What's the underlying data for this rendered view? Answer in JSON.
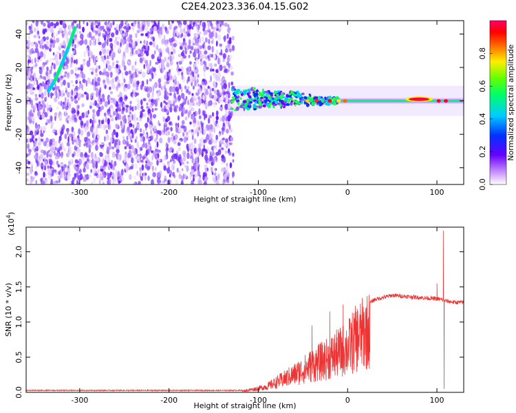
{
  "title": "C2E4.2023.336.04.15.G02",
  "chart_data": [
    {
      "type": "heatmap",
      "xlabel": "Height of straight line (km)",
      "ylabel": "Frequency (Hz)",
      "xlim": [
        -360,
        130
      ],
      "ylim": [
        -50,
        48
      ],
      "xticks": [
        -300,
        -200,
        -100,
        0,
        100
      ],
      "yticks": [
        -40,
        -20,
        0,
        20,
        40
      ],
      "colorbar": {
        "label": "Normalized spectral amplitude",
        "range": [
          0,
          1
        ],
        "ticks": [
          "0.0",
          "0.2",
          "0.4",
          "0.6",
          "0.8"
        ],
        "tick_values": [
          0,
          0.2,
          0.4,
          0.6,
          0.8
        ],
        "colors": [
          "#ffffff",
          "#cc99ff",
          "#6600ff",
          "#0033ff",
          "#00ccff",
          "#00ff66",
          "#66ff00",
          "#ffee00",
          "#ff6600",
          "#ff0000",
          "#ff0066"
        ]
      },
      "features": [
        {
          "name": "noise-region",
          "x_range": [
            -360,
            -128
          ],
          "f_range": [
            -50,
            48
          ]
        },
        {
          "name": "chirp-trace",
          "points": [
            [
              -335,
              6
            ],
            [
              -328,
              12
            ],
            [
              -320,
              22
            ],
            [
              -312,
              33
            ],
            [
              -305,
              44
            ]
          ]
        },
        {
          "name": "central-band",
          "x_range": [
            -130,
            130
          ],
          "center_hz": 0
        },
        {
          "name": "hot-spot",
          "x": 80,
          "f": 1
        }
      ]
    },
    {
      "type": "line",
      "xlabel": "Height of straight line (km)",
      "ylabel": "SNR (10 * v/v)",
      "scale_label": "(x10",
      "scale_exp": "4",
      "scale_close": ")",
      "xlim": [
        -360,
        130
      ],
      "ylim": [
        0,
        2.35
      ],
      "xticks": [
        -300,
        -200,
        -100,
        0,
        100
      ],
      "yticks": [
        "0.0",
        "0.5",
        "1.0",
        "1.5",
        "2.0"
      ],
      "ytick_values": [
        0,
        0.5,
        1.0,
        1.5,
        2.0
      ],
      "color": "#ee3333",
      "envelope": {
        "x": [
          -360,
          -120,
          -110,
          -100,
          -90,
          -80,
          -70,
          -60,
          -50,
          -40,
          -30,
          -20,
          -10,
          0,
          10,
          20,
          30,
          40,
          50,
          60,
          70,
          80,
          90,
          100,
          105,
          110,
          115,
          120,
          130
        ],
        "y": [
          0.02,
          0.02,
          0.05,
          0.08,
          0.12,
          0.2,
          0.28,
          0.36,
          0.45,
          0.55,
          0.62,
          0.7,
          0.8,
          0.9,
          1.1,
          1.22,
          1.32,
          1.35,
          1.38,
          1.37,
          1.36,
          1.35,
          1.34,
          1.33,
          1.32,
          1.3,
          1.29,
          1.28,
          1.28
        ]
      },
      "spikes": [
        {
          "x": -40,
          "y": 0.95
        },
        {
          "x": -20,
          "y": 1.15
        },
        {
          "x": -5,
          "y": 1.25
        },
        {
          "x": 100,
          "y": 1.55
        },
        {
          "x": 107,
          "y": 2.3
        },
        {
          "x": 108,
          "y": 0.05
        }
      ]
    }
  ]
}
